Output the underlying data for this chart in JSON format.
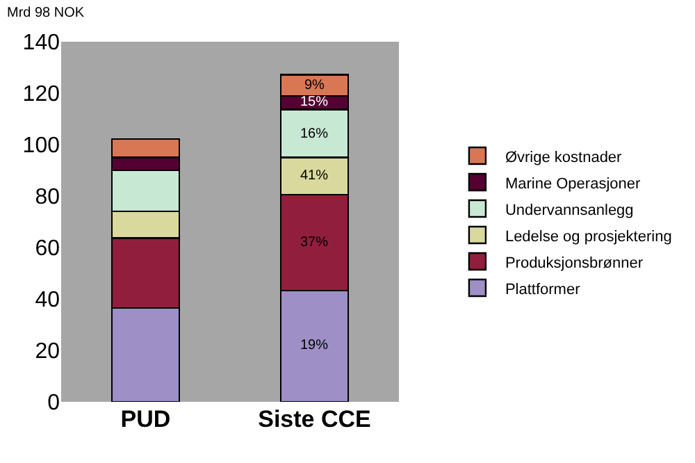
{
  "chart_data": {
    "type": "bar",
    "stacked": true,
    "ylabel": "Mrd 98 NOK",
    "categories": [
      "PUD",
      "Siste CCE"
    ],
    "series": [
      {
        "name": "Plattformer",
        "color": "#9e90c6",
        "values": [
          36.5,
          43.3
        ]
      },
      {
        "name": "Produksjonsbrønner",
        "color": "#921e3d",
        "values": [
          27.2,
          37.2
        ]
      },
      {
        "name": "Ledelse og prosjektering",
        "color": "#d9d99e",
        "values": [
          10.4,
          14.5
        ]
      },
      {
        "name": "Undervannsanlegg",
        "color": "#c7e8d3",
        "values": [
          15.9,
          18.6
        ]
      },
      {
        "name": "Marine Operasjoner",
        "color": "#550033",
        "values": [
          5.0,
          5.4
        ]
      },
      {
        "name": "Øvrige kostnader",
        "color": "#d97755",
        "values": [
          7.1,
          8.2
        ]
      }
    ],
    "annotations": [
      "19%",
      "37%",
      "41%",
      "16%",
      "15%",
      "9%"
    ],
    "ylim": [
      0,
      140
    ],
    "yticks": [
      0,
      20,
      40,
      60,
      80,
      100,
      120,
      140
    ],
    "grid": false,
    "legend": "right"
  }
}
